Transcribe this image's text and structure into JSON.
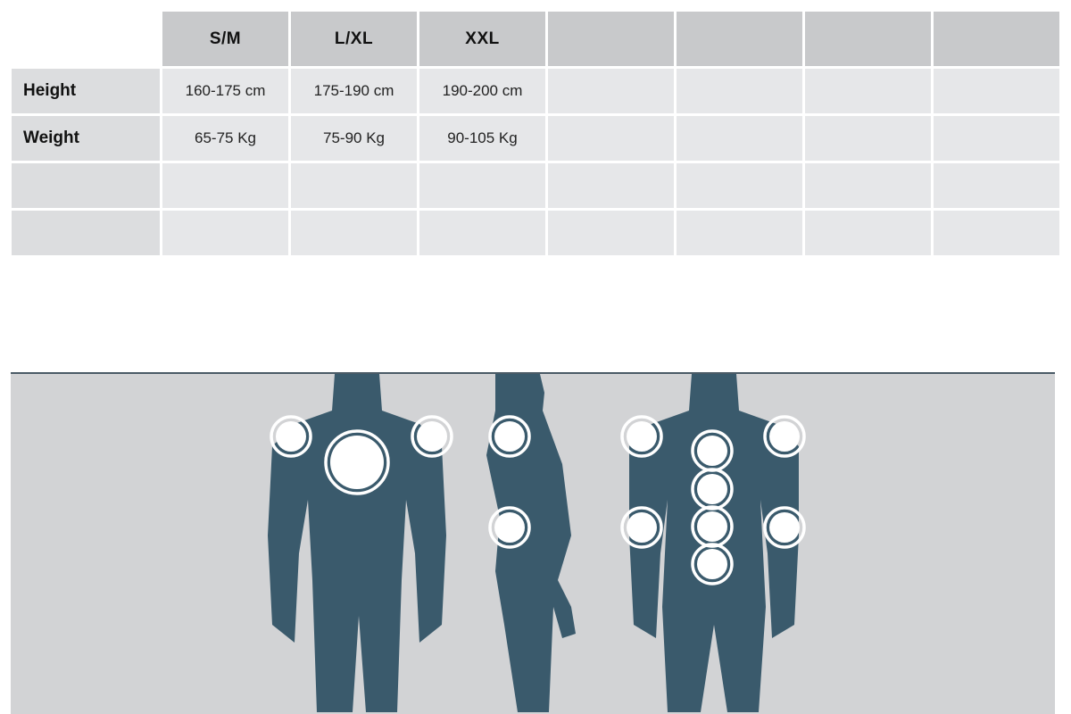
{
  "size_table": {
    "columns": [
      "S/M",
      "L/XL",
      "XXL",
      "",
      "",
      "",
      ""
    ],
    "rows": [
      {
        "label": "Height",
        "values": [
          "160-175 cm",
          "175-190 cm",
          "190-200 cm",
          "",
          "",
          "",
          ""
        ]
      },
      {
        "label": "Weight",
        "values": [
          "65-75 Kg",
          "75-90 Kg",
          "90-105 Kg",
          "",
          "",
          "",
          ""
        ]
      },
      {
        "label": "",
        "values": [
          "",
          "",
          "",
          "",
          "",
          "",
          ""
        ]
      },
      {
        "label": "",
        "values": [
          "",
          "",
          "",
          "",
          "",
          "",
          ""
        ]
      }
    ]
  },
  "illustration": {
    "views": [
      "front",
      "side",
      "back"
    ],
    "colors": {
      "body": "#3a5a6c",
      "background": "#d2d3d5",
      "marker": "#ffffff"
    }
  }
}
